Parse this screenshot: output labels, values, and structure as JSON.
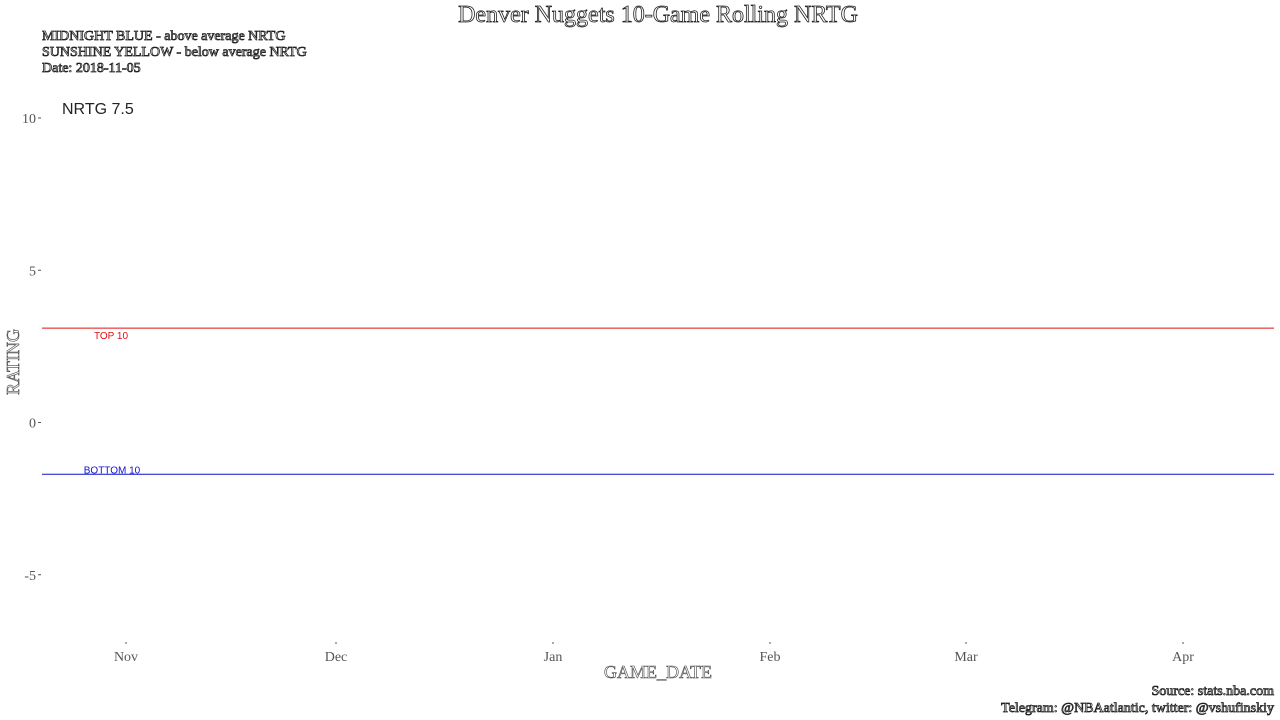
{
  "title": "Denver Nuggets 10-Game Rolling NRTG",
  "subtitle": [
    "MIDNIGHT BLUE - above average NRTG",
    "SUNSHINE YELLOW - below average NRTG",
    "Date: 2018-11-05"
  ],
  "caption": [
    "Source: stats.nba.com",
    "Telegram: @NBAatlantic, twitter: @vshufinskiy"
  ],
  "colors": {
    "top10_line": "#e01010",
    "bottom10_line": "#1010d0",
    "above_average": "#0e2240",
    "below_average": "#fec524"
  },
  "chart_data": {
    "type": "line",
    "title": "Denver Nuggets 10-Game Rolling NRTG",
    "xlabel": "GAME_DATE",
    "ylabel": "RATING",
    "x_tick_labels": [
      "Nov",
      "Dec",
      "Jan",
      "Feb",
      "Mar",
      "Apr"
    ],
    "x_ticks": [
      "2018-11-01",
      "2018-12-01",
      "2019-01-01",
      "2019-02-01",
      "2019-03-01",
      "2019-04-01"
    ],
    "xlim": [
      "2018-10-20",
      "2019-04-14"
    ],
    "y_ticks": [
      -5,
      0,
      5,
      10
    ],
    "y_tick_labels": [
      "-5",
      "0",
      "5",
      "10"
    ],
    "ylim": [
      -7,
      10.7
    ],
    "grid": false,
    "reference_lines": [
      {
        "label": "TOP 10",
        "y": 3.1,
        "color": "#e01010"
      },
      {
        "label": "BOTTOM 10",
        "y": -1.7,
        "color": "#1010d0"
      }
    ],
    "annotation": {
      "text": "NRTG 7.5",
      "value": 7.5
    },
    "series": []
  }
}
